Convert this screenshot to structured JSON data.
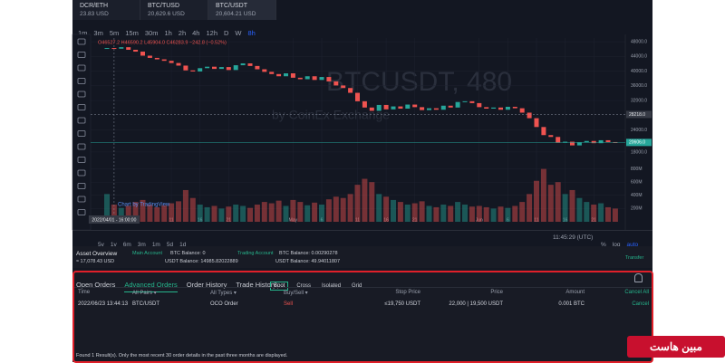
{
  "tabs": [
    {
      "pair": "DCR/ETH",
      "price": "23.83 USD"
    },
    {
      "pair": "BTC/TUSD",
      "price": "20,629.6 USD"
    },
    {
      "pair": "BTC/USDT",
      "price": "20,604.21 USD"
    }
  ],
  "active_tab": 2,
  "intervals": [
    "1m",
    "3m",
    "5m",
    "15m",
    "30m",
    "1h",
    "2h",
    "4h",
    "12h",
    "D",
    "W",
    "8h"
  ],
  "active_interval": 11,
  "chart": {
    "type": "candlestick",
    "legend": "O46527.2  H46590.2  L45904.0  C46283.9  −242.8 (−0.52%)",
    "watermark": "BTCUSDT, 480",
    "watermark_sub": "by CoinEx Exchange",
    "credit": "Chart by TradingView",
    "up_color": "#26a69a",
    "down_color": "#ef5350",
    "closes": [
      46283,
      46100,
      46500,
      45800,
      45300,
      44200,
      43600,
      43200,
      42800,
      42200,
      41500,
      40200,
      39900,
      40800,
      41200,
      40600,
      41100,
      40300,
      41600,
      42100,
      41400,
      40500,
      39800,
      39200,
      38600,
      39400,
      38200,
      37800,
      38600,
      37600,
      38400,
      37200,
      36100,
      35400,
      34100,
      31800,
      30100,
      29200,
      30800,
      29600,
      30400,
      29800,
      30900,
      30200,
      29400,
      29900,
      29500,
      30600,
      30100,
      31600,
      31800,
      31300,
      30200,
      29800,
      30100,
      29500,
      30300,
      29900,
      28700,
      27200,
      24800,
      22600,
      22100,
      20500,
      20800,
      19800,
      20600,
      21000,
      20400,
      21200,
      20700,
      20606
    ],
    "volumes": [
      420,
      260,
      210,
      240,
      300,
      330,
      260,
      220,
      250,
      280,
      310,
      480,
      360,
      260,
      220,
      240,
      200,
      230,
      260,
      240,
      210,
      260,
      300,
      280,
      320,
      240,
      330,
      300,
      250,
      290,
      260,
      340,
      380,
      360,
      420,
      560,
      650,
      600,
      420,
      380,
      330,
      300,
      260,
      280,
      310,
      240,
      220,
      260,
      240,
      300,
      260,
      230,
      240,
      220,
      200,
      230,
      210,
      240,
      300,
      420,
      620,
      800,
      560,
      600,
      420,
      480,
      360,
      300,
      260,
      280,
      220,
      200
    ],
    "ylim": [
      17000,
      49000
    ],
    "yticks": [
      {
        "value": 48000,
        "label": "48000.0"
      },
      {
        "value": 44000,
        "label": "44000.0"
      },
      {
        "value": 40000,
        "label": "40000.0"
      },
      {
        "value": 36000,
        "label": "36000.0"
      },
      {
        "value": 32000,
        "label": "32000.0"
      },
      {
        "value": 24000,
        "label": "24000.0"
      },
      {
        "value": 18000,
        "label": "18000.0"
      }
    ],
    "vol_ylim": [
      0,
      1000
    ],
    "vol_ticks": [
      {
        "value": 800,
        "label": "800M"
      },
      {
        "value": 600,
        "label": "600M"
      },
      {
        "value": 400,
        "label": "400M"
      },
      {
        "value": 200,
        "label": "200M"
      }
    ],
    "xticks": [
      {
        "value": 9,
        "label": "11"
      },
      {
        "value": 13,
        "label": "16"
      },
      {
        "value": 17,
        "label": "21"
      },
      {
        "value": 26,
        "label": "May"
      },
      {
        "value": 30,
        "label": "6"
      },
      {
        "value": 35,
        "label": "11"
      },
      {
        "value": 39,
        "label": "16"
      },
      {
        "value": 43,
        "label": "21"
      },
      {
        "value": 52,
        "label": "Jun"
      },
      {
        "value": 56,
        "label": "6"
      },
      {
        "value": 60,
        "label": "11"
      },
      {
        "value": 64,
        "label": "16"
      },
      {
        "value": 68,
        "label": "21"
      }
    ],
    "crosshair": {
      "x": 1,
      "x_label": "2022/04/01 - 16:00:00",
      "y": {
        "value": 28218,
        "label": "28218.0"
      }
    },
    "last_price": {
      "value": 20606,
      "label": "20606.0"
    }
  },
  "ranges": [
    "5y",
    "1y",
    "6m",
    "3m",
    "1m",
    "5d",
    "1d"
  ],
  "clock": "11:45:29 (UTC)",
  "scale_options": [
    "%",
    "log",
    "auto"
  ],
  "assets": {
    "title": "Asset Overview",
    "total": "≈ 17,078.43 USD",
    "main": {
      "name": "Main Account",
      "btc": "BTC Balance: 0",
      "usdt": "USDT Balance: 14985.82022889"
    },
    "trading": {
      "name": "Trading Account",
      "btc": "BTC Balance: 0.00290278",
      "usdt": "USDT Balance: 49.94011807"
    },
    "transfer": "Transfer"
  },
  "orders": {
    "tabs": [
      "Open Orders",
      "Advanced Orders",
      "Order History",
      "Trade History"
    ],
    "active_tab": 1,
    "markets": [
      "Spot",
      "Cross",
      "Isolated",
      "Grid"
    ],
    "active_market": 0,
    "columns": [
      "Time",
      "All Pairs",
      "All Types",
      "Buy/Sell",
      "Stop Price",
      "Price",
      "Amount",
      "Cancel All"
    ],
    "rows": [
      [
        "2022/06/23 13:44:13",
        "BTC/USDT",
        "OCO Order",
        "Sell",
        "≤19,750 USDT",
        "22,000 | 19,500 USDT",
        "0.001 BTC",
        "Cancel"
      ]
    ],
    "footer": "Found 1 Result(s). Only the most recent 30 order details in the past three months are displayed."
  },
  "brand": "مبین هاست"
}
